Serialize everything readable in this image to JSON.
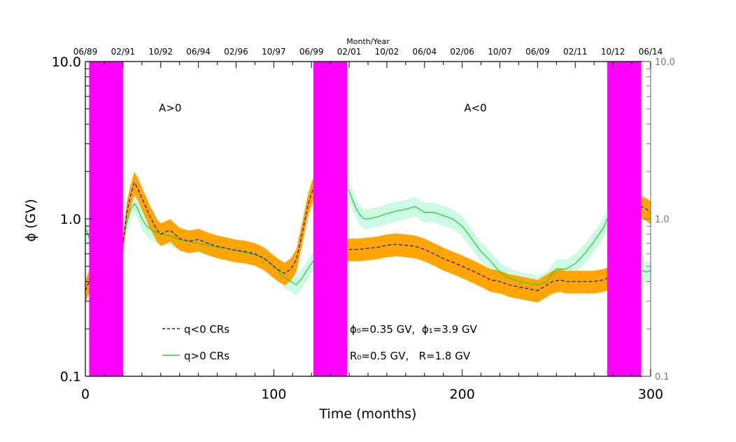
{
  "chart_data": {
    "type": "line",
    "top_axis_title": "Month/Year",
    "xlabel": "Time (months)",
    "ylabel": "ϕ (GV)",
    "xlim": [
      0,
      300
    ],
    "ylim": [
      0.1,
      10.0
    ],
    "yscale": "log",
    "x_ticks": [
      "0",
      "100",
      "200",
      "300"
    ],
    "y_ticks": [
      "0.1",
      "1.0",
      "10.0"
    ],
    "y_ticks_right": [
      "0.1",
      "1.0",
      "10.0"
    ],
    "top_ticks": [
      {
        "month": 0,
        "label": "06/89"
      },
      {
        "month": 20,
        "label": "02/91"
      },
      {
        "month": 40,
        "label": "10/92"
      },
      {
        "month": 60,
        "label": "06/94"
      },
      {
        "month": 80,
        "label": "02/96"
      },
      {
        "month": 100,
        "label": "10/97"
      },
      {
        "month": 120,
        "label": "06/99"
      },
      {
        "month": 140,
        "label": "02/01"
      },
      {
        "month": 160,
        "label": "10/02"
      },
      {
        "month": 180,
        "label": "06/04"
      },
      {
        "month": 200,
        "label": "02/06"
      },
      {
        "month": 220,
        "label": "10/07"
      },
      {
        "month": 240,
        "label": "06/09"
      },
      {
        "month": 260,
        "label": "02/11"
      },
      {
        "month": 280,
        "label": "10/12"
      },
      {
        "month": 300,
        "label": "06/14"
      }
    ],
    "polarity_labels": [
      {
        "text": "A>0",
        "x": 45,
        "y": 4.8
      },
      {
        "text": "A<0",
        "x": 207,
        "y": 4.8
      }
    ],
    "reversal_bands": [
      [
        2,
        20
      ],
      [
        121,
        139
      ],
      [
        277,
        295
      ]
    ],
    "legend": [
      {
        "label": "q<0 CRs",
        "color": "#1a1acc",
        "dashed": true
      },
      {
        "label": "q>0 CRs",
        "color": "#33cc33",
        "dashed": false
      }
    ],
    "params_line1": "ϕ₀=0.35 GV,  ϕ₁=3.9 GV",
    "params_line2": "R₀=0.5 GV,   R=1.8 GV",
    "colors": {
      "band": "#ff00ff",
      "neg_band": "#ffa500",
      "pos_band": "#ccfae5",
      "neg_line": "#1a1acc",
      "pos_line": "#33cc33"
    },
    "series": [
      {
        "name": "q<0 CRs",
        "x": [
          0,
          2,
          4,
          6,
          8,
          10,
          12,
          14,
          16,
          18,
          20,
          22,
          24,
          26,
          28,
          30,
          32,
          34,
          36,
          38,
          40,
          45,
          50,
          55,
          60,
          65,
          70,
          75,
          80,
          85,
          90,
          95,
          100,
          103,
          106,
          109,
          112,
          115,
          118,
          120,
          122,
          124,
          126,
          128,
          130,
          132,
          134,
          136,
          138,
          140,
          145,
          150,
          155,
          160,
          165,
          170,
          175,
          180,
          185,
          190,
          195,
          200,
          205,
          210,
          215,
          220,
          225,
          230,
          235,
          240,
          245,
          248,
          252,
          255,
          260,
          265,
          270,
          275,
          277,
          279,
          281,
          283,
          285,
          287,
          289,
          291,
          293,
          295,
          298,
          300
        ],
        "y": [
          0.35,
          0.4,
          0.6,
          1.0,
          1.5,
          1.9,
          1.6,
          1.2,
          1.6,
          1.3,
          0.7,
          1.1,
          1.4,
          1.7,
          1.55,
          1.35,
          1.2,
          1.05,
          0.95,
          0.85,
          0.8,
          0.85,
          0.75,
          0.72,
          0.74,
          0.7,
          0.67,
          0.65,
          0.63,
          0.62,
          0.6,
          0.56,
          0.5,
          0.47,
          0.45,
          0.48,
          0.55,
          0.8,
          1.2,
          1.45,
          1.65,
          1.7,
          1.55,
          1.25,
          0.95,
          0.8,
          0.72,
          0.68,
          0.65,
          0.64,
          0.64,
          0.65,
          0.66,
          0.68,
          0.69,
          0.68,
          0.67,
          0.64,
          0.6,
          0.56,
          0.53,
          0.5,
          0.47,
          0.44,
          0.41,
          0.4,
          0.38,
          0.37,
          0.36,
          0.35,
          0.38,
          0.4,
          0.41,
          0.4,
          0.4,
          0.4,
          0.4,
          0.41,
          0.42,
          0.44,
          0.46,
          0.48,
          0.5,
          0.55,
          0.7,
          0.9,
          1.1,
          1.2,
          1.15,
          1.1
        ]
      },
      {
        "name": "q>0 CRs",
        "x": [
          0,
          2,
          4,
          6,
          8,
          10,
          12,
          14,
          16,
          18,
          20,
          22,
          24,
          26,
          28,
          30,
          32,
          34,
          36,
          38,
          40,
          45,
          50,
          55,
          60,
          65,
          70,
          75,
          80,
          85,
          90,
          95,
          100,
          103,
          106,
          109,
          112,
          115,
          118,
          120,
          122,
          124,
          126,
          128,
          130,
          132,
          134,
          136,
          138,
          140,
          142,
          144,
          146,
          148,
          150,
          155,
          160,
          165,
          170,
          175,
          180,
          185,
          190,
          195,
          200,
          205,
          210,
          215,
          220,
          225,
          230,
          235,
          240,
          245,
          248,
          250,
          255,
          260,
          265,
          270,
          275,
          277,
          279,
          281,
          283,
          285,
          287,
          289,
          291,
          293,
          295,
          298,
          300
        ],
        "y": [
          0.88,
          0.76,
          0.72,
          0.7,
          0.66,
          0.55,
          0.42,
          0.55,
          0.68,
          0.6,
          0.72,
          0.95,
          1.15,
          1.25,
          1.15,
          1.0,
          0.92,
          0.87,
          0.84,
          0.82,
          0.8,
          0.78,
          0.74,
          0.72,
          0.7,
          0.68,
          0.66,
          0.65,
          0.63,
          0.61,
          0.59,
          0.56,
          0.5,
          0.46,
          0.42,
          0.4,
          0.38,
          0.42,
          0.48,
          0.52,
          0.56,
          0.6,
          0.64,
          0.65,
          0.9,
          1.25,
          1.5,
          1.62,
          1.6,
          1.5,
          1.3,
          1.15,
          1.05,
          1.0,
          1.0,
          1.03,
          1.08,
          1.12,
          1.15,
          1.2,
          1.1,
          1.1,
          1.05,
          1.0,
          0.9,
          0.75,
          0.62,
          0.54,
          0.46,
          0.42,
          0.4,
          0.39,
          0.38,
          0.4,
          0.45,
          0.48,
          0.48,
          0.52,
          0.6,
          0.72,
          0.88,
          1.0,
          1.05,
          1.08,
          1.1,
          1.05,
          1.0,
          0.85,
          0.65,
          0.5,
          0.47,
          0.46,
          0.47
        ]
      }
    ]
  }
}
